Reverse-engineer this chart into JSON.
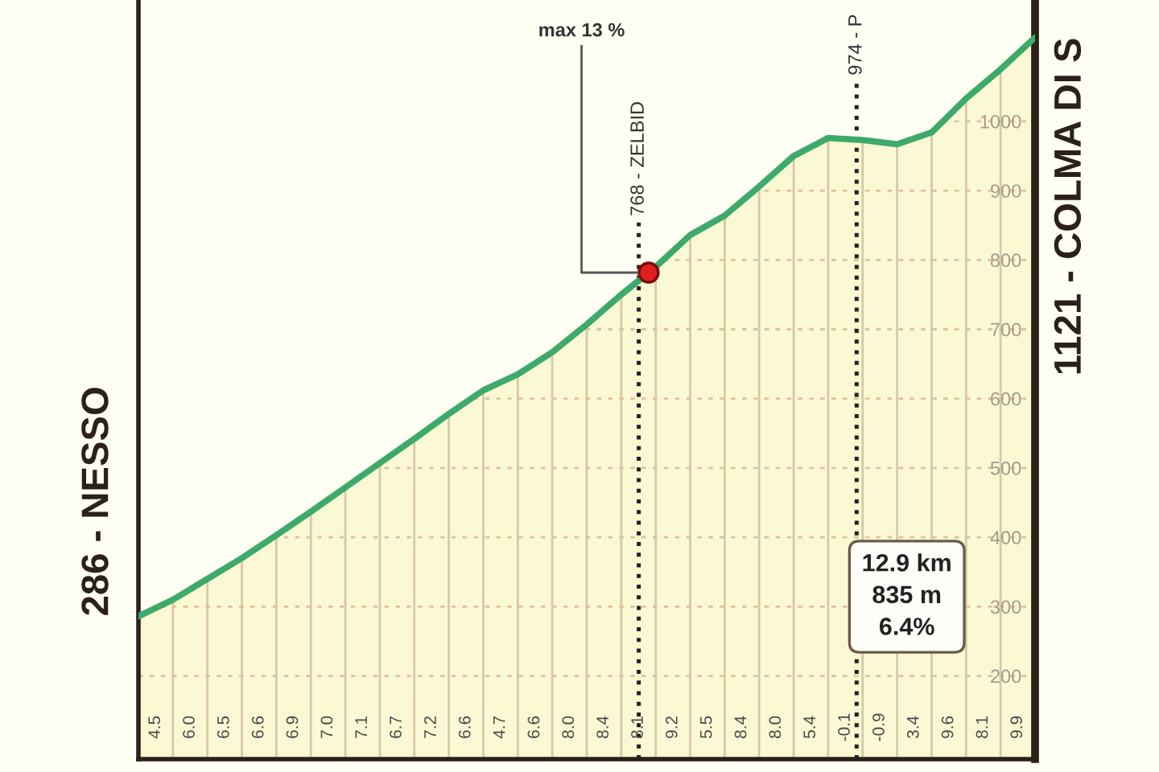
{
  "chart_data": {
    "type": "area",
    "ylim": [
      80,
      1175
    ],
    "yticks": [
      200,
      300,
      400,
      500,
      600,
      700,
      800,
      900,
      1000
    ],
    "tick_labels": "y",
    "grid": true,
    "categories": [
      null,
      null,
      null,
      null,
      null,
      null,
      null,
      null,
      null,
      null,
      null,
      null,
      null,
      null,
      null,
      null,
      null,
      null,
      null,
      null,
      null,
      null,
      null,
      null,
      null,
      null,
      null
    ],
    "series": [
      {
        "color": "#3daa6a",
        "values": [
          286,
          310,
          340,
          370,
          403,
          437,
          472,
          507,
          542,
          578,
          612,
          635,
          667,
          707,
          750,
          790,
          836,
          864,
          906,
          950,
          976,
          973,
          967,
          984,
          1033,
          1075,
          1121
        ]
      }
    ],
    "annotations": [
      "286 - NESSO",
      "1121 - COLMA DI S",
      "768 - ZELBID",
      "974 - P",
      "max 13 %",
      "12.9 km\n835 m\n6.4%",
      "4.5",
      "6.0",
      "6.5",
      "6.6",
      "6.9",
      "7.0",
      "7.1",
      "6.7",
      "7.2",
      "6.6",
      "4.7",
      "6.6",
      "8.0",
      "8.4",
      "8.1",
      "9.2",
      "5.5",
      "8.4",
      "8.0",
      "5.4",
      "-0.1",
      "-0.9",
      "3.4",
      "9.6",
      "8.1",
      "9.9"
    ]
  }
}
